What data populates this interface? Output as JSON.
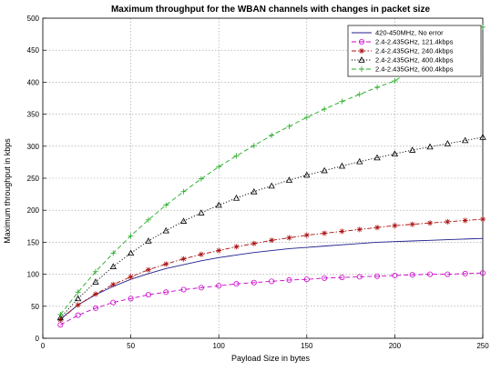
{
  "chart_data": {
    "type": "line",
    "title": "Maximum throughput for the WBAN channels with changes in packet size",
    "xlabel": "Payload Size in bytes",
    "ylabel": "Maximum throughput in kbps",
    "xlim": [
      0,
      250
    ],
    "ylim": [
      0,
      500
    ],
    "xticks": [
      0,
      50,
      100,
      150,
      200,
      250
    ],
    "yticks": [
      0,
      50,
      100,
      150,
      200,
      250,
      300,
      350,
      400,
      450,
      500
    ],
    "grid": true,
    "legend_position": "top-right",
    "x": [
      10,
      20,
      30,
      40,
      50,
      60,
      70,
      80,
      90,
      100,
      110,
      120,
      130,
      140,
      150,
      160,
      170,
      180,
      190,
      200,
      210,
      220,
      230,
      240,
      250
    ],
    "series": [
      {
        "name": "420-450MHz, No error",
        "color": "#1f1f8f",
        "marker": "none",
        "dash": "solid",
        "values": [
          30,
          52,
          68,
          81,
          92,
          101,
          109,
          115,
          121,
          126,
          130,
          134,
          137,
          140,
          142,
          144,
          146,
          148,
          150,
          151,
          152,
          153,
          154,
          155,
          156
        ]
      },
      {
        "name": "2.4-2.435GHz, 121.4kbps",
        "color": "#cc00cc",
        "marker": "circle",
        "dash": "dashed",
        "values": [
          21,
          36,
          47,
          56,
          62,
          68,
          72,
          76,
          79,
          82,
          85,
          87,
          89,
          91,
          92,
          94,
          95,
          96,
          97,
          98,
          99,
          100,
          100,
          101,
          102
        ]
      },
      {
        "name": "2.4-2.435GHz, 240.4kbps",
        "color": "#aa1111",
        "marker": "asterisk",
        "dash": "dashdot",
        "values": [
          29,
          52,
          69,
          84,
          96,
          107,
          116,
          124,
          131,
          137,
          143,
          148,
          153,
          157,
          161,
          164,
          167,
          170,
          173,
          176,
          178,
          180,
          182,
          184,
          186
        ]
      },
      {
        "name": "2.4-2.435GHz, 400.4kbps",
        "color": "#000000",
        "marker": "triangle",
        "dash": "dotted",
        "values": [
          32,
          62,
          88,
          112,
          133,
          152,
          168,
          183,
          196,
          208,
          219,
          229,
          238,
          247,
          255,
          262,
          269,
          276,
          282,
          288,
          294,
          299,
          304,
          309,
          314
        ]
      },
      {
        "name": "2.4-2.435GHz, 600.4kbps",
        "color": "#22aa22",
        "marker": "plus",
        "dash": "dashed",
        "values": [
          37,
          72,
          104,
          133,
          160,
          185,
          208,
          229,
          249,
          268,
          285,
          301,
          317,
          331,
          345,
          358,
          370,
          381,
          392,
          402,
          420,
          438,
          455,
          470,
          486
        ]
      }
    ]
  }
}
